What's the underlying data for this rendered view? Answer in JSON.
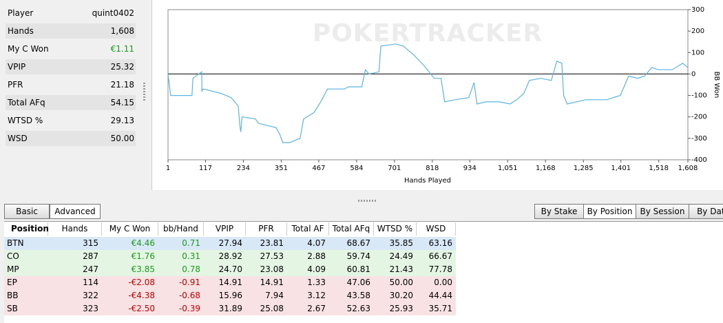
{
  "stats": [
    {
      "label": "Player",
      "value": "quint0402"
    },
    {
      "label": "Hands",
      "value": "1,608"
    },
    {
      "label": "My C Won",
      "value": "€1.11"
    },
    {
      "label": "VPIP",
      "value": "25.32"
    },
    {
      "label": "PFR",
      "value": "21.18"
    },
    {
      "label": "Total AFq",
      "value": "54.15"
    },
    {
      "label": "WTSD %",
      "value": "29.13"
    },
    {
      "label": "WSD",
      "value": "50.00"
    }
  ],
  "chart_data": {
    "type": "line",
    "watermark": "POKERTRACKER",
    "x_label": "Hands Played",
    "y_label": "BB Won",
    "color": "#5ab4e6",
    "x": [
      1,
      9,
      75,
      78,
      105,
      106,
      110,
      164,
      196,
      218,
      223,
      226,
      230,
      271,
      281,
      335,
      346,
      356,
      377,
      409,
      420,
      452,
      473,
      494,
      547,
      558,
      600,
      611,
      622,
      653,
      659,
      706,
      728,
      760,
      792,
      813,
      824,
      845,
      856,
      888,
      931,
      947,
      956,
      983,
      1026,
      1058,
      1079,
      1101,
      1118,
      1154,
      1186,
      1203,
      1218,
      1224,
      1235,
      1292,
      1357,
      1399,
      1425,
      1453,
      1474,
      1496,
      1517,
      1560,
      1592,
      1608
    ],
    "values": [
      0,
      -100,
      -100,
      -20,
      10,
      -80,
      -70,
      -90,
      -110,
      -150,
      -240,
      -270,
      -200,
      -210,
      -230,
      -250,
      -280,
      -320,
      -320,
      -300,
      -210,
      -180,
      -130,
      -70,
      -70,
      -60,
      -60,
      20,
      0,
      10,
      130,
      140,
      130,
      90,
      40,
      0,
      -20,
      -20,
      -130,
      -120,
      -110,
      -40,
      -140,
      -130,
      -130,
      -140,
      -120,
      -90,
      -30,
      -20,
      -30,
      60,
      50,
      -100,
      -140,
      -120,
      -120,
      -100,
      -10,
      -20,
      -10,
      30,
      20,
      20,
      50,
      30
    ],
    "xlim": [
      1,
      1608
    ],
    "xticks": [
      1,
      117,
      234,
      351,
      467,
      584,
      701,
      818,
      934,
      {
        "value": 1051,
        "label": "1,051"
      },
      {
        "value": 1168,
        "label": "1,168"
      },
      {
        "value": 1285,
        "label": "1,285"
      },
      {
        "value": 1401,
        "label": "1,401"
      },
      {
        "value": 1518,
        "label": "1,518"
      },
      {
        "value": 1608,
        "label": "1,608"
      }
    ],
    "ylim": [
      -400,
      300
    ],
    "yticks": [
      -400,
      -300,
      -200,
      -100,
      0,
      100,
      200,
      300
    ]
  },
  "tabs_left": [
    "Basic",
    "Advanced"
  ],
  "tabs_right": [
    "By Stake",
    "By Position",
    "By Session",
    "By Date"
  ],
  "table": {
    "columns": [
      "Position",
      "Hands",
      "My C Won",
      "bb/Hand",
      "VPIP",
      "PFR",
      "Total AF",
      "Total AFq",
      "WTSD %",
      "WSD"
    ],
    "rows": [
      [
        "BTN",
        "315",
        "€4.46",
        "0.71",
        "27.94",
        "23.81",
        "4.07",
        "68.67",
        "35.85",
        "63.16"
      ],
      [
        "CO",
        "287",
        "€1.76",
        "0.31",
        "28.92",
        "27.53",
        "2.88",
        "59.74",
        "24.49",
        "66.67"
      ],
      [
        "MP",
        "247",
        "€3.85",
        "0.78",
        "24.70",
        "23.08",
        "4.09",
        "60.81",
        "21.43",
        "77.78"
      ],
      [
        "EP",
        "114",
        "-€2.08",
        "-0.91",
        "14.91",
        "14.91",
        "1.33",
        "47.06",
        "50.00",
        "0.00"
      ],
      [
        "BB",
        "322",
        "-€4.38",
        "-0.68",
        "15.96",
        "7.94",
        "3.12",
        "43.58",
        "30.20",
        "44.44"
      ],
      [
        "SB",
        "323",
        "-€2.50",
        "-0.39",
        "31.89",
        "25.08",
        "2.67",
        "52.63",
        "25.93",
        "35.71"
      ]
    ]
  }
}
